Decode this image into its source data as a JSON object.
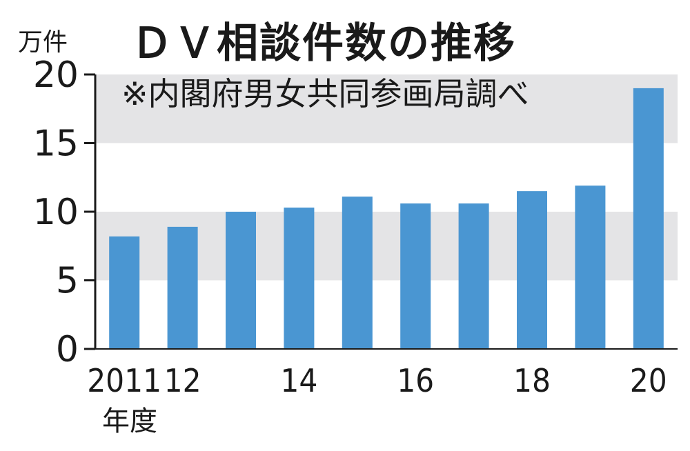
{
  "chart_data": {
    "type": "bar",
    "title": "ＤＶ相談件数の推移",
    "subtitle": "※内閣府男女共同参画局調べ",
    "ylabel": "万件",
    "x_suffix": "年度",
    "categories": [
      "2011",
      "12",
      "13",
      "14",
      "15",
      "16",
      "17",
      "18",
      "19",
      "20"
    ],
    "x_tick_labels": [
      "2011",
      "12",
      "",
      "14",
      "",
      "16",
      "",
      "18",
      "",
      "20"
    ],
    "values": [
      8.2,
      8.9,
      10.0,
      10.3,
      11.1,
      10.6,
      10.6,
      11.5,
      11.9,
      19.0
    ],
    "ylim": [
      0,
      20
    ],
    "yticks": [
      0,
      5,
      10,
      15,
      20
    ],
    "bands": [
      [
        5,
        10
      ],
      [
        15,
        20
      ]
    ],
    "colors": {
      "bar": "#4a96d2",
      "band": "#e4e4e6",
      "axis": "#1a1a1a"
    }
  }
}
